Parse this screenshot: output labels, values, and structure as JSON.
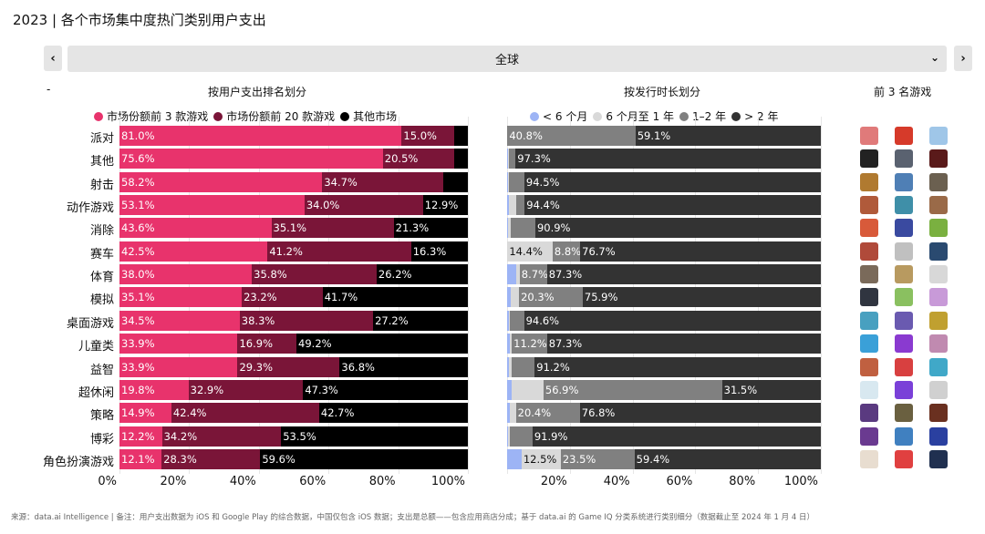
{
  "title": "2023 | 各个市场集中度热门类别用户支出",
  "nav": {
    "prev_label": "‹",
    "next_label": "›",
    "region": "全球",
    "dropdown_icon": "chevron-down-icon",
    "dash": "-"
  },
  "sections": {
    "left": "按用户支出排名划分",
    "right": "按发行时长划分",
    "icons": "前 3 名游戏"
  },
  "chart_data": [
    {
      "type": "bar",
      "orientation": "horizontal",
      "stacked": true,
      "categories": [
        "派对",
        "其他",
        "射击",
        "动作游戏",
        "消除",
        "赛车",
        "体育",
        "模拟",
        "桌面游戏",
        "儿童类",
        "益智",
        "超休闲",
        "策略",
        "博彩",
        "角色扮演游戏"
      ],
      "series": [
        {
          "name": "市场份额前 3 款游戏",
          "color": "#e8336c",
          "text_color": "#ffffff",
          "values": [
            81.0,
            75.6,
            58.2,
            53.1,
            43.6,
            42.5,
            38.0,
            35.1,
            34.5,
            33.9,
            33.9,
            19.8,
            14.9,
            12.2,
            12.1
          ],
          "labels": [
            "81.0%",
            "75.6%",
            "58.2%",
            "53.1%",
            "43.6%",
            "42.5%",
            "38.0%",
            "35.1%",
            "34.5%",
            "33.9%",
            "33.9%",
            "19.8%",
            "14.9%",
            "12.2%",
            "12.1%"
          ]
        },
        {
          "name": "市场份额前 20 款游戏",
          "color": "#7a1538",
          "text_color": "#ffffff",
          "values": [
            15.0,
            20.5,
            34.7,
            34.0,
            35.1,
            41.2,
            35.8,
            23.2,
            38.3,
            16.9,
            29.3,
            32.9,
            42.4,
            34.2,
            28.3
          ],
          "labels": [
            "15.0%",
            "20.5%",
            "34.7%",
            "34.0%",
            "35.1%",
            "41.2%",
            "35.8%",
            "23.2%",
            "38.3%",
            "16.9%",
            "29.3%",
            "32.9%",
            "42.4%",
            "34.2%",
            "28.3%"
          ]
        },
        {
          "name": "其他市场",
          "color": "#000000",
          "text_color": "#ffffff",
          "values": [
            4.0,
            3.9,
            7.1,
            12.9,
            21.3,
            16.3,
            26.2,
            41.7,
            27.2,
            49.2,
            36.8,
            47.3,
            42.7,
            53.5,
            59.6
          ],
          "labels": [
            "",
            "",
            "",
            "12.9%",
            "21.3%",
            "16.3%",
            "26.2%",
            "41.7%",
            "27.2%",
            "49.2%",
            "36.8%",
            "47.3%",
            "42.7%",
            "53.5%",
            "59.6%"
          ]
        }
      ],
      "xlim": [
        0,
        100
      ],
      "xticks": [
        "0%",
        "20%",
        "40%",
        "60%",
        "80%",
        "100%"
      ],
      "grid": true,
      "legend": "top"
    },
    {
      "type": "bar",
      "orientation": "horizontal",
      "stacked": true,
      "series": [
        {
          "name": "< 6 个月",
          "color": "#9db4f5",
          "text_color": "#111111",
          "values": [
            0.1,
            0.3,
            0.3,
            0.5,
            0.3,
            0.1,
            3.0,
            1.2,
            0.5,
            1.0,
            0.5,
            1.5,
            0.8,
            0.3,
            4.6
          ],
          "labels": [
            "",
            "",
            "",
            "",
            "",
            "",
            "",
            "",
            "",
            "",
            "",
            "",
            "",
            "",
            ""
          ]
        },
        {
          "name": "6 个月至 1 年",
          "color": "#d9d9d9",
          "text_color": "#111111",
          "values": [
            0,
            0.2,
            0.3,
            2.3,
            0.8,
            14.4,
            1.0,
            2.6,
            0.3,
            0.5,
            1.0,
            10.1,
            2.0,
            0.5,
            12.5
          ],
          "labels": [
            "",
            "",
            "",
            "",
            "",
            "14.4%",
            "",
            "",
            "",
            "",
            "",
            "",
            "",
            "",
            "12.5%"
          ]
        },
        {
          "name": "1–2 年",
          "color": "#808080",
          "text_color": "#ffffff",
          "values": [
            40.8,
            2.2,
            4.9,
            2.8,
            7.9,
            8.8,
            8.7,
            20.3,
            4.6,
            11.2,
            7.3,
            56.9,
            20.4,
            7.3,
            23.5
          ],
          "labels": [
            "40.8%",
            "",
            "",
            "",
            "",
            "8.8%",
            "8.7%",
            "20.3%",
            "",
            "11.2%",
            "",
            "56.9%",
            "20.4%",
            "",
            "23.5%"
          ]
        },
        {
          "name": "> 2 年",
          "color": "#333333",
          "text_color": "#ffffff",
          "values": [
            59.1,
            97.3,
            94.5,
            94.4,
            90.9,
            76.7,
            87.3,
            75.9,
            94.6,
            87.3,
            91.2,
            31.5,
            76.8,
            91.9,
            59.4
          ],
          "labels": [
            "59.1%",
            "97.3%",
            "94.5%",
            "94.4%",
            "90.9%",
            "76.7%",
            "87.3%",
            "75.9%",
            "94.6%",
            "87.3%",
            "91.2%",
            "31.5%",
            "76.8%",
            "91.9%",
            "59.4%"
          ]
        }
      ],
      "xlim": [
        0,
        100
      ],
      "xticks": [
        "",
        "20%",
        "40%",
        "60%",
        "80%",
        "100%"
      ],
      "grid": true,
      "legend": "top"
    }
  ],
  "top_games_icon_colors": [
    [
      "#e07a7a",
      "#d63a2a",
      "#9fc6e8"
    ],
    [
      "#222222",
      "#5a6270",
      "#5a1a1a"
    ],
    [
      "#b07a30",
      "#4f7fb5",
      "#6b6050"
    ],
    [
      "#b05a3a",
      "#3f8fa8",
      "#9a6a48"
    ],
    [
      "#d85a3a",
      "#3a4aa0",
      "#7ab040"
    ],
    [
      "#b04a3a",
      "#c0c0c0",
      "#2a4a70"
    ],
    [
      "#7a6a5a",
      "#b89a60",
      "#d8d8d8"
    ],
    [
      "#303540",
      "#8ac060",
      "#c89ad8"
    ],
    [
      "#48a0c0",
      "#6a5ab0",
      "#c0a030"
    ],
    [
      "#3aa0d8",
      "#8a3ad0",
      "#c08ab0"
    ],
    [
      "#c06040",
      "#d84040",
      "#40a8c8"
    ],
    [
      "#d8e8f0",
      "#7a40d8",
      "#d0d0d0"
    ],
    [
      "#5a3a80",
      "#6a6040",
      "#6a3020"
    ],
    [
      "#6a3a90",
      "#4080c0",
      "#2a40a0"
    ],
    [
      "#e8ddd0",
      "#e04040",
      "#203050"
    ]
  ],
  "footer": "来源：data.ai Intelligence | 备注：用户支出数据为 iOS 和 Google Play 的综合数据，中国仅包含 iOS 数据；支出是总额——包含应用商店分成；基于 data.ai 的 Game IQ 分类系统进行类别细分（数据截止至 2024 年 1 月 4 日）"
}
